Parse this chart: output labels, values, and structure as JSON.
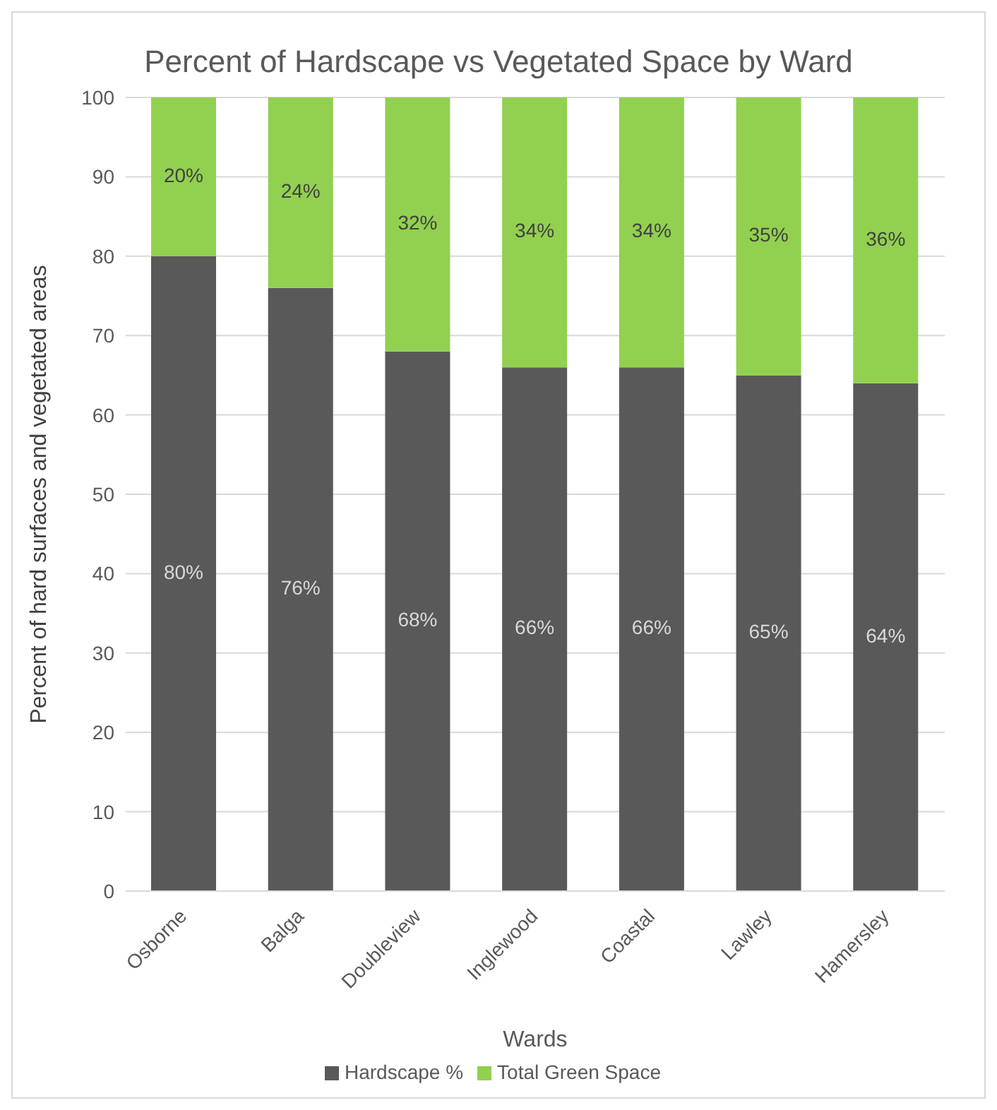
{
  "chart_data": {
    "type": "bar",
    "title": "Percent of Hardscape vs Vegetated Space by Ward",
    "xlabel": "Wards",
    "ylabel": "Percent of hard surfaces and vegetated areas",
    "categories": [
      "Osborne",
      "Balga",
      "Doubleview",
      "Inglewood",
      "Coastal",
      "Lawley",
      "Hamersley"
    ],
    "series": [
      {
        "name": "Hardscape %",
        "color": "#595959",
        "values": [
          80,
          76,
          68,
          66,
          66,
          65,
          64
        ],
        "value_labels": [
          "80%",
          "76%",
          "68%",
          "66%",
          "66%",
          "65%",
          "64%"
        ]
      },
      {
        "name": "Total Green Space",
        "color": "#92d050",
        "values": [
          20,
          24,
          32,
          34,
          34,
          35,
          36
        ],
        "value_labels": [
          "20%",
          "24%",
          "32%",
          "34%",
          "34%",
          "35%",
          "36%"
        ]
      }
    ],
    "stacked": true,
    "ylim": [
      0,
      100
    ],
    "yticks": [
      0,
      10,
      20,
      30,
      40,
      50,
      60,
      70,
      80,
      90,
      100
    ],
    "grid": "y",
    "legend": "bottom"
  }
}
